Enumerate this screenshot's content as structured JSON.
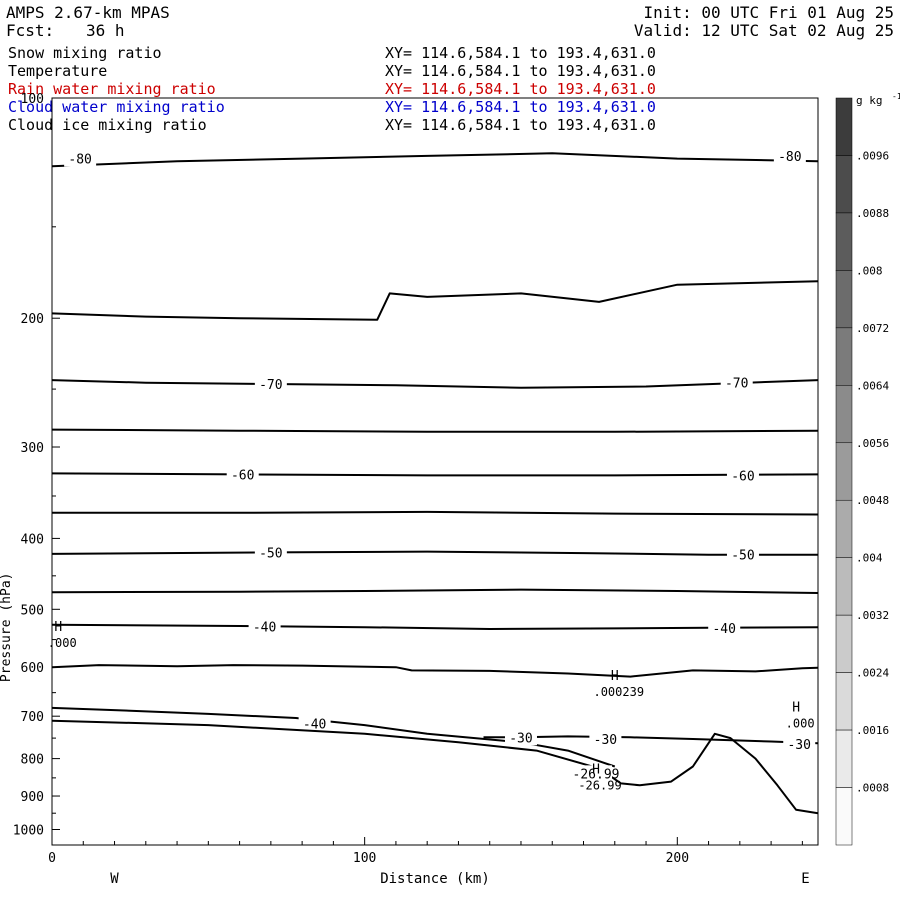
{
  "header": {
    "model": "AMPS 2.67-km MPAS",
    "fcst_label": "Fcst:",
    "fcst_value": "36 h",
    "init": "Init: 00 UTC Fri 01 Aug 25",
    "valid": "Valid: 12 UTC Sat 02 Aug 25"
  },
  "fields": [
    {
      "name": "Snow mixing ratio",
      "xy": "XY= 114.6,584.1 to 193.4,631.0",
      "color": "#000000"
    },
    {
      "name": "Temperature",
      "xy": "XY= 114.6,584.1 to 193.4,631.0",
      "color": "#000000"
    },
    {
      "name": "Rain water mixing ratio",
      "xy": "XY= 114.6,584.1 to 193.4,631.0",
      "color": "#cc0000"
    },
    {
      "name": "Cloud water mixing ratio",
      "xy": "XY= 114.6,584.1 to 193.4,631.0",
      "color": "#0000cc"
    },
    {
      "name": "Cloud ice mixing ratio",
      "xy": "XY= 114.6,584.1 to 193.4,631.0",
      "color": "#000000"
    }
  ],
  "chart_data": {
    "type": "contour",
    "xlabel": "Distance (km)",
    "ylabel": "Pressure (hPa)",
    "xlim": [
      0,
      245
    ],
    "ylim": [
      1050,
      100
    ],
    "y_log": true,
    "x_ticks": [
      0,
      100,
      200
    ],
    "y_ticks": [
      100,
      200,
      300,
      400,
      500,
      600,
      700,
      800,
      900,
      1000
    ],
    "x_end_labels": {
      "left": "W",
      "right": "E"
    },
    "colorbar": {
      "unit": "g kg",
      "unit_exp": "-1",
      "labels": [
        ".0096",
        ".0088",
        ".008",
        ".0072",
        ".0064",
        ".0056",
        ".0048",
        ".004",
        ".0032",
        ".0024",
        ".0016",
        ".0008"
      ]
    },
    "temperature_contours": [
      {
        "label": "-80",
        "points": [
          [
            0,
            124
          ],
          [
            40,
            122
          ],
          [
            80,
            121
          ],
          [
            120,
            120
          ],
          [
            160,
            119
          ],
          [
            200,
            121
          ],
          [
            245,
            122
          ]
        ],
        "labels_at": [
          [
            9,
            121
          ],
          [
            236,
            120
          ]
        ]
      },
      {
        "label": "",
        "points": [
          [
            0,
            197
          ],
          [
            30,
            199
          ],
          [
            60,
            200
          ],
          [
            104,
            201
          ],
          [
            108,
            185
          ],
          [
            120,
            187
          ],
          [
            150,
            185
          ],
          [
            175,
            190
          ],
          [
            200,
            180
          ],
          [
            245,
            178
          ]
        ],
        "labels_at": []
      },
      {
        "label": "-70",
        "points": [
          [
            0,
            243
          ],
          [
            30,
            245
          ],
          [
            70,
            246
          ],
          [
            110,
            247
          ],
          [
            150,
            249
          ],
          [
            190,
            248
          ],
          [
            245,
            243
          ]
        ],
        "labels_at": [
          [
            70,
            246
          ],
          [
            219,
            245
          ]
        ]
      },
      {
        "label": "",
        "points": [
          [
            0,
            284
          ],
          [
            60,
            285
          ],
          [
            120,
            286
          ],
          [
            180,
            286
          ],
          [
            245,
            285
          ]
        ],
        "labels_at": []
      },
      {
        "label": "-60",
        "points": [
          [
            0,
            326
          ],
          [
            60,
            327
          ],
          [
            120,
            328
          ],
          [
            180,
            328
          ],
          [
            245,
            327
          ]
        ],
        "labels_at": [
          [
            61,
            327
          ],
          [
            221,
            328
          ]
        ]
      },
      {
        "label": "",
        "points": [
          [
            0,
            369
          ],
          [
            60,
            369
          ],
          [
            120,
            368
          ],
          [
            180,
            370
          ],
          [
            245,
            371
          ]
        ],
        "labels_at": []
      },
      {
        "label": "-50",
        "points": [
          [
            0,
            420
          ],
          [
            70,
            418
          ],
          [
            120,
            417
          ],
          [
            170,
            419
          ],
          [
            210,
            421
          ],
          [
            245,
            421
          ]
        ],
        "labels_at": [
          [
            70,
            418
          ],
          [
            221,
            421
          ]
        ]
      },
      {
        "label": "",
        "points": [
          [
            0,
            474
          ],
          [
            60,
            473
          ],
          [
            100,
            472
          ],
          [
            150,
            470
          ],
          [
            200,
            472
          ],
          [
            245,
            475
          ]
        ],
        "labels_at": []
      },
      {
        "label": "-40",
        "points": [
          [
            0,
            525
          ],
          [
            60,
            527
          ],
          [
            100,
            529
          ],
          [
            140,
            532
          ],
          [
            180,
            531
          ],
          [
            210,
            530
          ],
          [
            245,
            529
          ]
        ],
        "labels_at": [
          [
            68,
            528
          ],
          [
            215,
            530
          ]
        ]
      },
      {
        "label": "",
        "points": [
          [
            0,
            600
          ],
          [
            15,
            596
          ],
          [
            40,
            598
          ],
          [
            58,
            596
          ],
          [
            80,
            597
          ],
          [
            110,
            600
          ],
          [
            115,
            606
          ],
          [
            140,
            607
          ],
          [
            165,
            612
          ],
          [
            185,
            618
          ],
          [
            205,
            606
          ],
          [
            225,
            608
          ],
          [
            240,
            602
          ],
          [
            245,
            601
          ]
        ],
        "labels_at": []
      },
      {
        "label": "-40",
        "points": [
          [
            0,
            682
          ],
          [
            25,
            688
          ],
          [
            50,
            695
          ],
          [
            78,
            704
          ],
          [
            100,
            720
          ],
          [
            120,
            740
          ],
          [
            150,
            760
          ],
          [
            165,
            780
          ],
          [
            180,
            820
          ]
        ],
        "labels_at": [
          [
            84,
            716
          ]
        ]
      },
      {
        "label": "-30",
        "points": [
          [
            138,
            748
          ],
          [
            150,
            748
          ],
          [
            165,
            746
          ],
          [
            185,
            748
          ],
          [
            205,
            752
          ],
          [
            230,
            758
          ],
          [
            245,
            762
          ]
        ],
        "labels_at": [
          [
            150,
            748
          ],
          [
            177,
            752
          ],
          [
            239,
            764
          ]
        ]
      },
      {
        "label": "-26.99",
        "points": [
          [
            0,
            710
          ],
          [
            50,
            720
          ],
          [
            100,
            740
          ],
          [
            130,
            760
          ],
          [
            155,
            780
          ],
          [
            175,
            825
          ],
          [
            182,
            865
          ],
          [
            188,
            870
          ],
          [
            198,
            860
          ],
          [
            205,
            820
          ],
          [
            212,
            740
          ],
          [
            217,
            750
          ],
          [
            225,
            800
          ],
          [
            232,
            870
          ],
          [
            238,
            940
          ],
          [
            245,
            950
          ]
        ],
        "labels_at": [
          [
            174,
            838
          ]
        ]
      }
    ],
    "annotations": [
      {
        "text": "H",
        "value": ".000",
        "x": 2,
        "p": 535
      },
      {
        "text": "H",
        "value": ".000239",
        "x": 180,
        "p": 625
      },
      {
        "text": "H",
        "value": ".000",
        "x": 238,
        "p": 690
      },
      {
        "text": "H",
        "value": "-26.99",
        "x": 174,
        "p": 838
      }
    ]
  }
}
